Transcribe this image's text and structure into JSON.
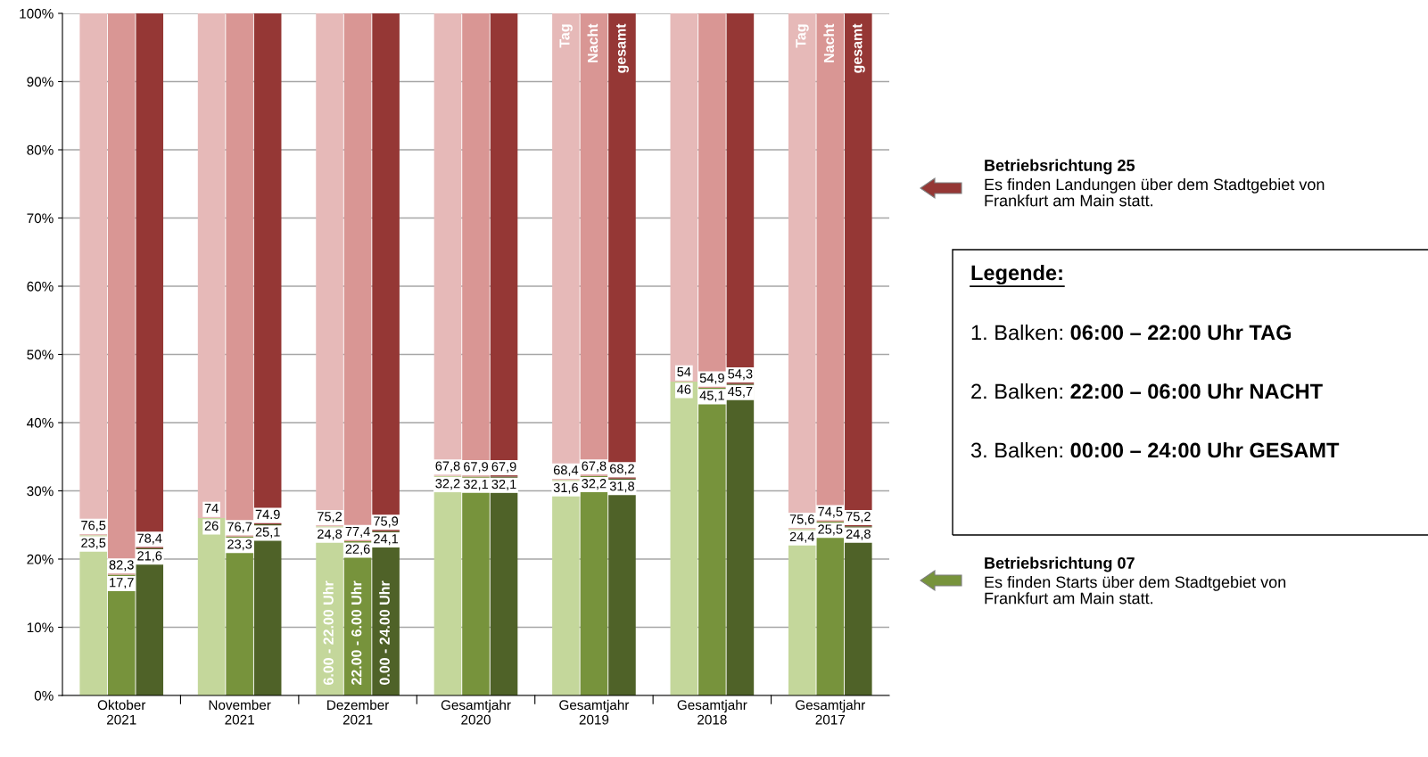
{
  "chart_data": {
    "type": "bar",
    "stacked": true,
    "categories": [
      null,
      "Oktober\n2021",
      null,
      null,
      "November\n2021",
      null,
      null,
      "Dezember\n2021",
      null,
      null,
      "Gesamtjahr\n2020",
      null,
      null,
      "Gesamtjahr\n2019",
      null,
      null,
      "Gesamtjahr\n2018",
      null,
      null,
      "Gesamtjahr\n2017",
      null
    ],
    "ylim": [
      0,
      100
    ],
    "yticks": [
      {
        "value": 0,
        "label": "0%"
      },
      {
        "value": 10,
        "label": "10%"
      },
      {
        "value": 20,
        "label": "20%"
      },
      {
        "value": 30,
        "label": "30%"
      },
      {
        "value": 40,
        "label": "40%"
      },
      {
        "value": 50,
        "label": "50%"
      },
      {
        "value": 60,
        "label": "60%"
      },
      {
        "value": 70,
        "label": "70%"
      },
      {
        "value": 80,
        "label": "80%"
      },
      {
        "value": 90,
        "label": "90%"
      },
      {
        "value": 100,
        "label": "100%"
      }
    ],
    "grid": "y",
    "series": [
      {
        "color": "#77933c",
        "colors": [
          "#c4d79b",
          "#77933c",
          "#4f6228",
          "#c4d79b",
          "#77933c",
          "#4f6228",
          "#c4d79b",
          "#77933c",
          "#4f6228",
          "#c4d79b",
          "#77933c",
          "#4f6228",
          "#c4d79b",
          "#77933c",
          "#4f6228",
          "#c4d79b",
          "#77933c",
          "#4f6228",
          "#c4d79b",
          "#77933c",
          "#4f6228"
        ],
        "values": [
          23.5,
          17.7,
          21.6,
          26,
          23.3,
          25.1,
          24.8,
          22.6,
          24.1,
          32.2,
          32.1,
          32.1,
          31.6,
          32.2,
          31.8,
          46,
          45.1,
          45.7,
          24.4,
          25.5,
          24.8
        ],
        "value_labels": [
          "23,5",
          "17,7",
          "21,6",
          "26",
          "23,3",
          "25,1",
          "24,8",
          "22,6",
          "24,1",
          "32,2",
          "32,1",
          "32,1",
          "31,6",
          "32,2",
          "31,8",
          "46",
          "45,1",
          "45,7",
          "24,4",
          "25,5",
          "24,8"
        ]
      },
      {
        "color": "#953735",
        "colors": [
          "#e6b9b8",
          "#d99694",
          "#953735",
          "#e6b9b8",
          "#d99694",
          "#953735",
          "#e6b9b8",
          "#d99694",
          "#953735",
          "#e6b9b8",
          "#d99694",
          "#953735",
          "#e6b9b8",
          "#d99694",
          "#953735",
          "#e6b9b8",
          "#d99694",
          "#953735",
          "#e6b9b8",
          "#d99694",
          "#953735"
        ],
        "values": [
          76.5,
          82.3,
          78.4,
          74,
          76.7,
          74.9,
          75.2,
          77.4,
          75.9,
          67.8,
          67.9,
          67.9,
          68.4,
          67.8,
          68.2,
          54,
          54.9,
          54.3,
          75.6,
          74.5,
          75.2
        ],
        "value_labels": [
          "76,5",
          "82,3",
          "78,4",
          "74",
          "76,7",
          "74.9",
          "75,2",
          "77,4",
          "75,9",
          "67,8",
          "67,9",
          "67,9",
          "68,4",
          "67,8",
          "68,2",
          "54",
          "54,9",
          "54,3",
          "75,6",
          "74,5",
          "75,2"
        ]
      }
    ],
    "annotations": [
      "6.00 - 22.00 Uhr",
      "22.00 - 6.00 Uhr",
      "0.00 - 24.00 Uhr",
      "Tag",
      "Nacht",
      "gesamt",
      "Tag",
      "Nacht",
      "gesamt",
      "Betriebsrichtung 25",
      "Es finden Landungen über dem Stadtgebiet von\nFrankfurt am Main statt.",
      "Betriebsrichtung 07",
      "Es finden Starts über dem Stadtgebiet von\nFrankfurt am Main statt.",
      "Legende:",
      "1. Balken: ",
      "06:00 – 22:00 Uhr TAG",
      "2. Balken: ",
      "22:00 – 06:00 Uhr NACHT",
      "3. Balken: ",
      "00:00 – 24:00 Uhr GESAMT"
    ]
  }
}
